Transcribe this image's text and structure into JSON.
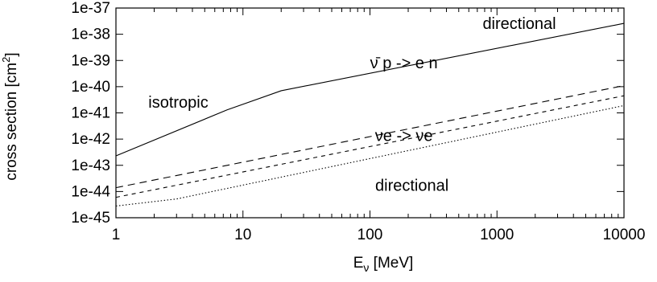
{
  "chart_data": {
    "type": "line",
    "title": "",
    "xlabel": {
      "main": "E",
      "sub": "ν",
      "rest": " [MeV]"
    },
    "ylabel": {
      "main": "cross section [cm",
      "sup": "2",
      "rest": "]"
    },
    "xscale": "log",
    "yscale": "log",
    "xlim": [
      1,
      10000
    ],
    "ylim": [
      1e-45,
      1e-37
    ],
    "grid": false,
    "legend": "none",
    "xtick_labels": [
      "1",
      "10",
      "100",
      "1000",
      "10000"
    ],
    "ytick_labels": [
      "1e-45",
      "1e-44",
      "1e-43",
      "1e-42",
      "1e-41",
      "1e-40",
      "1e-39",
      "1e-38",
      "1e-37"
    ],
    "series": [
      {
        "style": "solid",
        "x": [
          1,
          7.5,
          20,
          10000
        ],
        "y": [
          2.3e-43,
          1.3e-41,
          7e-41,
          2.6e-38
        ]
      },
      {
        "style": "long-dash",
        "x": [
          1,
          10000
        ],
        "y": [
          1.4e-44,
          1.1e-40
        ]
      },
      {
        "style": "short-dash",
        "x": [
          1,
          10000
        ],
        "y": [
          6e-45,
          4.5e-41
        ]
      },
      {
        "style": "dotted",
        "x": [
          1,
          3,
          10000
        ],
        "y": [
          2.8e-45,
          5.2e-45,
          1.9e-41
        ]
      }
    ],
    "annotations": [
      {
        "id": "directional-top",
        "text": "directional",
        "x": 1500,
        "y": 1.6e-38,
        "anchor": "middle"
      },
      {
        "id": "nubar-p",
        "text": "ν̄ p -> e n",
        "x": 185,
        "y": 5e-40,
        "anchor": "middle"
      },
      {
        "id": "isotropic",
        "text": "isotropic",
        "x": 3.1,
        "y": 1.6e-41,
        "anchor": "middle"
      },
      {
        "id": "nu-e",
        "text": "νe -> νe",
        "x": 185,
        "y": 8.5e-43,
        "anchor": "middle"
      },
      {
        "id": "directional-bottom",
        "text": "directional",
        "x": 110,
        "y": 1.05e-44,
        "anchor": "start"
      }
    ]
  }
}
